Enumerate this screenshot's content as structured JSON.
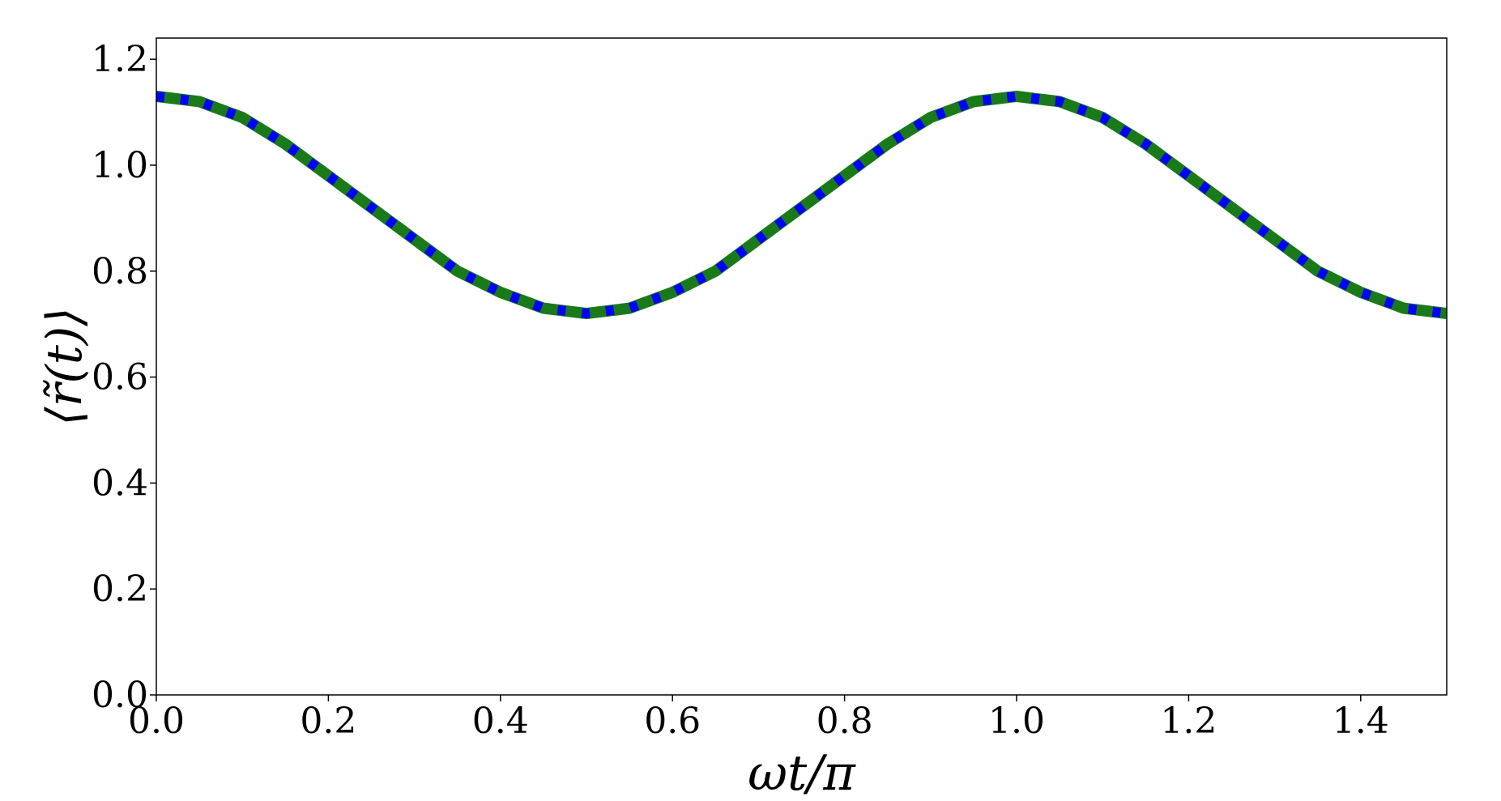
{
  "chart_data": {
    "type": "line",
    "xlabel": "ωt/π",
    "ylabel": "⟨r̃(t)⟩",
    "xlim": [
      0.0,
      1.5
    ],
    "ylim": [
      0.0,
      1.24
    ],
    "xticks": [
      "0.0",
      "0.2",
      "0.4",
      "0.6",
      "0.8",
      "1.0",
      "1.2",
      "1.4"
    ],
    "yticks": [
      "0.0",
      "0.2",
      "0.4",
      "0.6",
      "0.8",
      "1.0",
      "1.2"
    ],
    "grid": false,
    "legend": "none",
    "x": [
      0.0,
      0.05,
      0.1,
      0.15,
      0.2,
      0.25,
      0.3,
      0.35,
      0.4,
      0.45,
      0.5,
      0.55,
      0.6,
      0.65,
      0.7,
      0.75,
      0.8,
      0.85,
      0.9,
      0.95,
      1.0,
      1.05,
      1.1,
      1.15,
      1.2,
      1.25,
      1.3,
      1.35,
      1.4,
      1.45,
      1.5
    ],
    "series": [
      {
        "color": "#ff0000",
        "style": "solid",
        "values": [
          1.13,
          1.12,
          1.09,
          1.04,
          0.98,
          0.92,
          0.86,
          0.8,
          0.76,
          0.73,
          0.72,
          0.73,
          0.76,
          0.8,
          0.86,
          0.92,
          0.98,
          1.04,
          1.09,
          1.12,
          1.13,
          1.12,
          1.09,
          1.04,
          0.98,
          0.92,
          0.86,
          0.8,
          0.76,
          0.73,
          0.72
        ]
      },
      {
        "color": "#0000ff",
        "style": "solid",
        "values": [
          1.13,
          1.12,
          1.09,
          1.04,
          0.98,
          0.92,
          0.86,
          0.8,
          0.76,
          0.73,
          0.72,
          0.73,
          0.76,
          0.8,
          0.86,
          0.92,
          0.98,
          1.04,
          1.09,
          1.12,
          1.13,
          1.12,
          1.09,
          1.04,
          0.98,
          0.92,
          0.86,
          0.8,
          0.76,
          0.73,
          0.72
        ]
      },
      {
        "color": "#1a7a1a",
        "style": "thick-solid",
        "values": [
          1.13,
          1.12,
          1.09,
          1.04,
          0.98,
          0.92,
          0.86,
          0.8,
          0.76,
          0.73,
          0.72,
          0.73,
          0.76,
          0.8,
          0.86,
          0.92,
          0.98,
          1.04,
          1.09,
          1.12,
          1.13,
          1.12,
          1.09,
          1.04,
          0.98,
          0.92,
          0.86,
          0.8,
          0.76,
          0.73,
          0.72
        ]
      },
      {
        "color": "#0000ff",
        "style": "dotted",
        "values": [
          1.13,
          1.12,
          1.09,
          1.04,
          0.98,
          0.92,
          0.86,
          0.8,
          0.76,
          0.73,
          0.72,
          0.73,
          0.76,
          0.8,
          0.86,
          0.92,
          0.98,
          1.04,
          1.09,
          1.12,
          1.13,
          1.12,
          1.09,
          1.04,
          0.98,
          0.92,
          0.86,
          0.8,
          0.76,
          0.73,
          0.72
        ]
      }
    ]
  }
}
